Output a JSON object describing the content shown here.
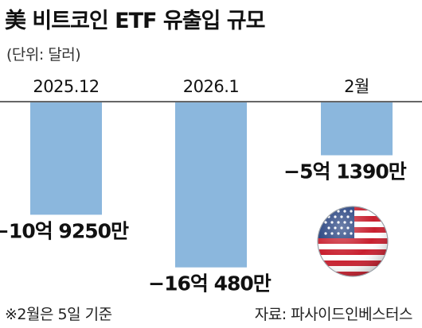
{
  "title": "美 비트코인 ETF 유출입 규모",
  "unit_label": "(단위: 달러)",
  "footnote": "※2월은 5일 기준",
  "source": "자료: 파사이드인베스터스",
  "colors": {
    "bar": "#8bb7dd",
    "axis": "#333333",
    "text": "#111111"
  },
  "icons": {
    "flag": "us-flag-icon"
  },
  "chart_data": {
    "type": "bar",
    "title": "美 비트코인 ETF 유출입 규모",
    "xlabel": "",
    "ylabel": "",
    "unit": "달러",
    "categories": [
      "2025.12",
      "2026.1",
      "2월"
    ],
    "values": [
      -1092500000,
      -1604800000,
      -513900000
    ],
    "value_labels": [
      "−10억 9250만",
      "−16억 480만",
      "−5억 1390만"
    ],
    "ylim": [
      -1700000000,
      0
    ],
    "grid": false,
    "legend": "none"
  }
}
